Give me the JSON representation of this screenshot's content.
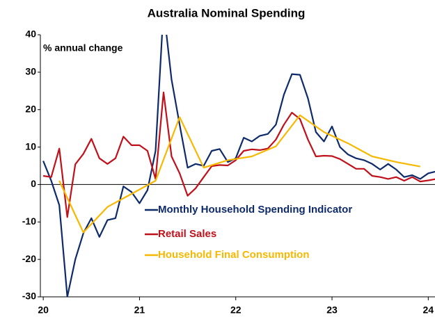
{
  "chart_data": {
    "type": "line",
    "title": "Australia Nominal Spending",
    "annotation": "% annual change",
    "xlim": [
      2019.97,
      2024.07
    ],
    "xticks": [
      {
        "value": 2020,
        "label": "20"
      },
      {
        "value": 2021,
        "label": "21"
      },
      {
        "value": 2022,
        "label": "22"
      },
      {
        "value": 2023,
        "label": "23"
      },
      {
        "value": 2024,
        "label": "24"
      }
    ],
    "ylim": [
      -30,
      40
    ],
    "yticks": [
      -30,
      -20,
      -10,
      0,
      10,
      20,
      30,
      40
    ],
    "legend": "center",
    "series": [
      {
        "name": "Monthly Household Spending Indicator",
        "color": "#0d2a6b",
        "x": [
          2020,
          2020.083,
          2020.167,
          2020.25,
          2020.333,
          2020.417,
          2020.5,
          2020.583,
          2020.667,
          2020.75,
          2020.833,
          2020.917,
          2021,
          2021.083,
          2021.167,
          2021.25,
          2021.333,
          2021.417,
          2021.5,
          2021.583,
          2021.667,
          2021.75,
          2021.833,
          2021.917,
          2022,
          2022.083,
          2022.167,
          2022.25,
          2022.333,
          2022.417,
          2022.5,
          2022.583,
          2022.667,
          2022.75,
          2022.833,
          2022.917,
          2023,
          2023.083,
          2023.167,
          2023.25,
          2023.333,
          2023.417,
          2023.5,
          2023.583,
          2023.667,
          2023.75,
          2023.833,
          2023.917,
          2024,
          2024.083
        ],
        "values": [
          6.3,
          1,
          -5.5,
          -30,
          -20,
          -13,
          -9,
          -14,
          -9.5,
          -9,
          -0.5,
          -2,
          -5,
          -1.5,
          9,
          47,
          28,
          16,
          4.5,
          5.5,
          5,
          9,
          9.5,
          6,
          7,
          12.5,
          11.5,
          13,
          13.5,
          16,
          24,
          29.5,
          29.3,
          23,
          14,
          11.5,
          15.5,
          10,
          8,
          7,
          6.5,
          5.5,
          4,
          5.5,
          4,
          2,
          2.5,
          1.5,
          3,
          3.5
        ]
      },
      {
        "name": "Retail Sales",
        "color": "#c0101a",
        "x": [
          2020,
          2020.083,
          2020.167,
          2020.25,
          2020.333,
          2020.417,
          2020.5,
          2020.583,
          2020.667,
          2020.75,
          2020.833,
          2020.917,
          2021,
          2021.083,
          2021.167,
          2021.25,
          2021.333,
          2021.417,
          2021.5,
          2021.583,
          2021.667,
          2021.75,
          2021.833,
          2021.917,
          2022,
          2022.083,
          2022.167,
          2022.25,
          2022.333,
          2022.417,
          2022.5,
          2022.583,
          2022.667,
          2022.75,
          2022.833,
          2022.917,
          2023,
          2023.083,
          2023.167,
          2023.25,
          2023.333,
          2023.417,
          2023.5,
          2023.583,
          2023.667,
          2023.75,
          2023.833,
          2023.917,
          2024,
          2024.083
        ],
        "values": [
          2.3,
          2,
          9.6,
          -8.7,
          5.4,
          8.2,
          12.2,
          7,
          5.5,
          7,
          12.8,
          10.5,
          10.5,
          9,
          1.5,
          24.6,
          7.5,
          3,
          -3,
          -1,
          2,
          4.9,
          5.2,
          5.1,
          6.5,
          9,
          9.4,
          9.2,
          9.6,
          12,
          16,
          19.2,
          17.5,
          12,
          7.5,
          7.7,
          7.6,
          6.8,
          5.5,
          4.2,
          4.2,
          2.3,
          2,
          1.5,
          2,
          1,
          2,
          0.8,
          1.1,
          1.5
        ]
      },
      {
        "name": "Household Final Consumption",
        "color": "#f6b800",
        "x": [
          2020.167,
          2020.417,
          2020.667,
          2020.917,
          2021.167,
          2021.417,
          2021.667,
          2021.917,
          2022.167,
          2022.417,
          2022.667,
          2022.917,
          2023.167,
          2023.417,
          2023.667,
          2023.917
        ],
        "values": [
          1,
          -12.8,
          -6,
          -2.5,
          1,
          18,
          4.5,
          6.5,
          7.5,
          10.2,
          18.5,
          14,
          11,
          7.5,
          6,
          4.8
        ]
      }
    ]
  }
}
